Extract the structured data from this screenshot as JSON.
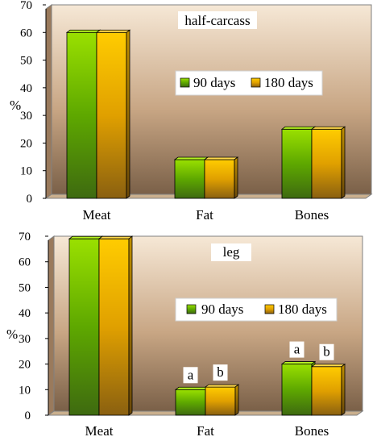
{
  "colors": {
    "series_90": "#66bb00",
    "series_180": "#ffc000",
    "wall_light": "#f4e4d0",
    "wall_dark": "#7a6048",
    "floor": "#cab08e"
  },
  "chart_data": [
    {
      "type": "bar",
      "title": "half-carcass",
      "ylabel": "%",
      "ylim": [
        0,
        70
      ],
      "yticks": [
        "0",
        "10",
        "20",
        "30",
        "40",
        "50",
        "60",
        "70"
      ],
      "categories": [
        "Meat",
        "Fat",
        "Bones"
      ],
      "legend": [
        "90 days",
        "180 days"
      ],
      "legend_position": "center-right",
      "series": [
        {
          "name": "90 days",
          "values": [
            60,
            14,
            25
          ]
        },
        {
          "name": "180 days",
          "values": [
            60,
            14,
            25
          ]
        }
      ],
      "annotations": []
    },
    {
      "type": "bar",
      "title": "leg",
      "ylabel": "%",
      "ylim": [
        0,
        70
      ],
      "yticks": [
        "0",
        "10",
        "20",
        "30",
        "40",
        "50",
        "60",
        "70"
      ],
      "categories": [
        "Meat",
        "Fat",
        "Bones"
      ],
      "legend": [
        "90 days",
        "180 days"
      ],
      "legend_position": "center-right",
      "series": [
        {
          "name": "90 days",
          "values": [
            69,
            10,
            20
          ]
        },
        {
          "name": "180 days",
          "values": [
            69,
            11,
            19
          ]
        }
      ],
      "annotations": [
        {
          "category": "Fat",
          "series": "90 days",
          "text": "a"
        },
        {
          "category": "Fat",
          "series": "180 days",
          "text": "b"
        },
        {
          "category": "Bones",
          "series": "90 days",
          "text": "a"
        },
        {
          "category": "Bones",
          "series": "180 days",
          "text": "b"
        }
      ]
    }
  ]
}
